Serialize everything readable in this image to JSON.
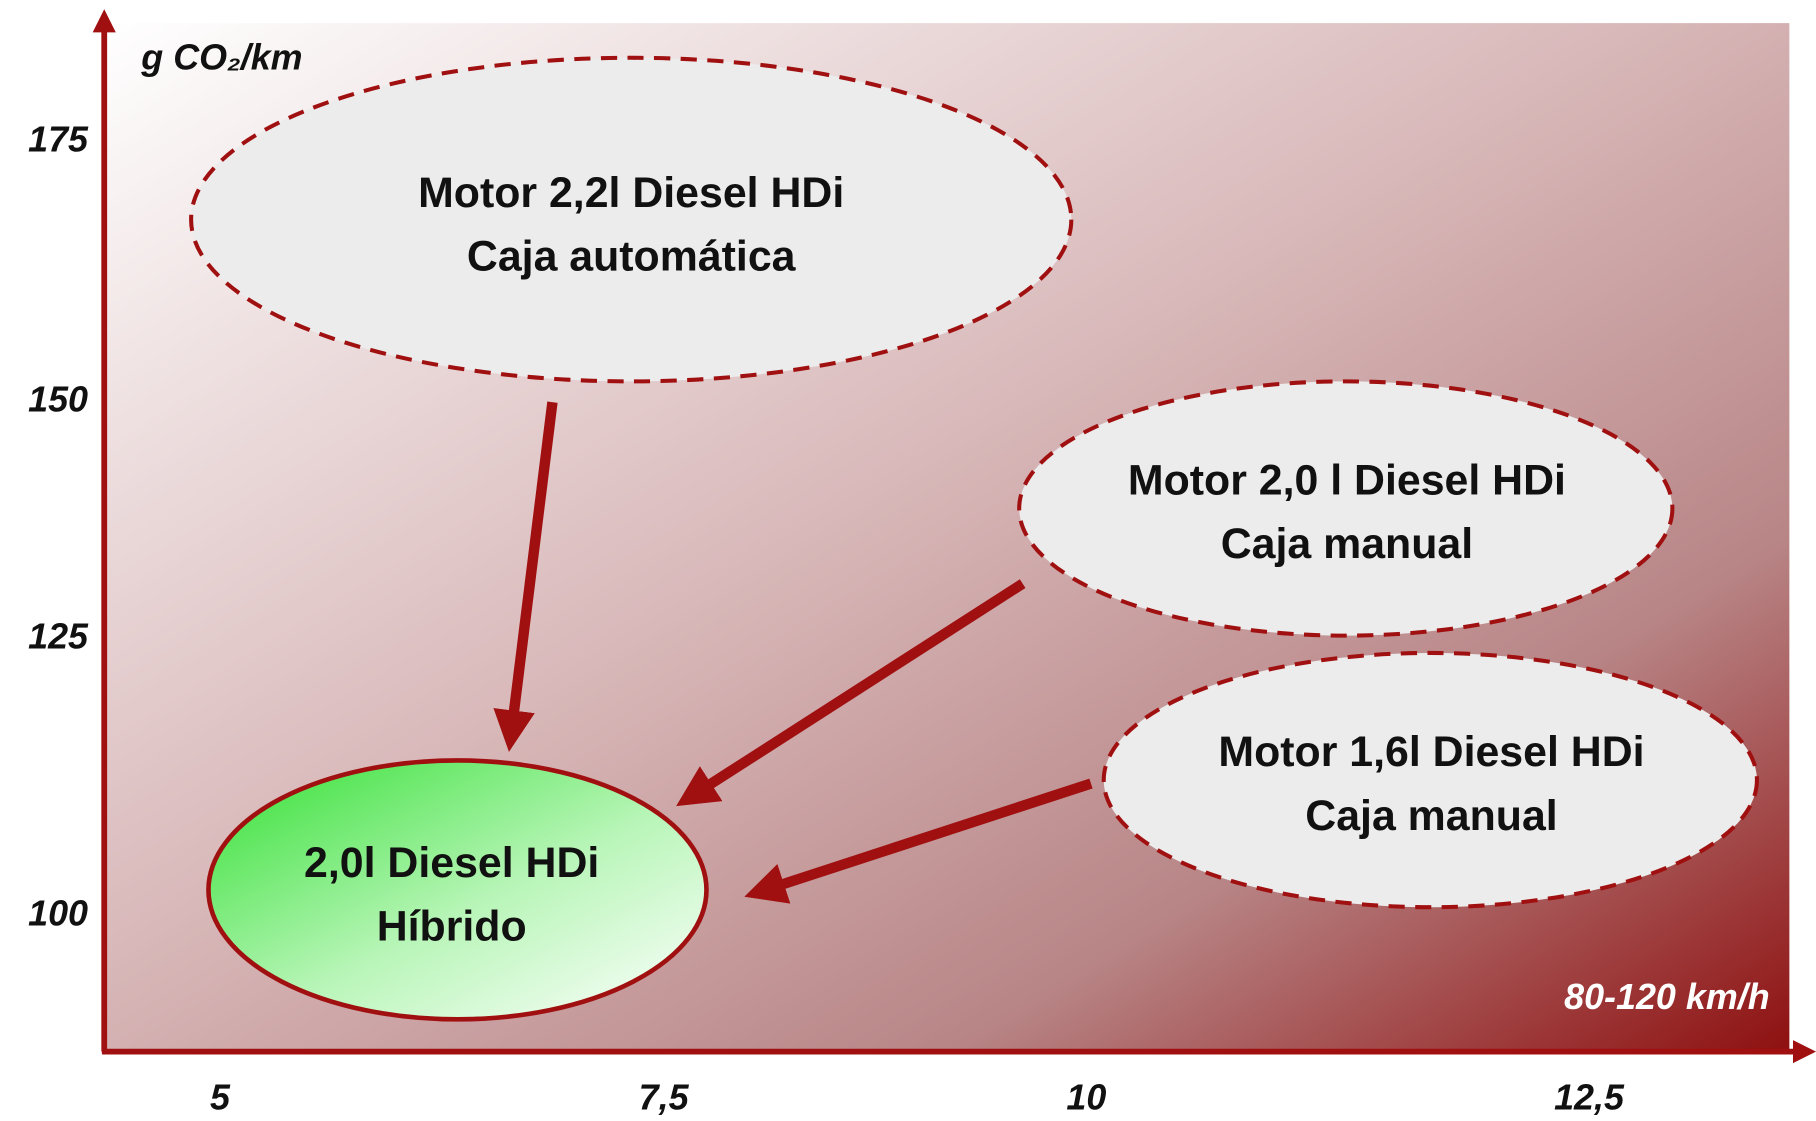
{
  "y_axis": {
    "label": "g CO₂/km",
    "ticks": [
      "175",
      "150",
      "125",
      "100"
    ]
  },
  "x_axis": {
    "label": "80-120 km/h",
    "ticks": [
      "5",
      "7,5",
      "10",
      "12,5"
    ]
  },
  "nodes": [
    {
      "lines": [
        "Motor 2,2l Diesel HDi",
        "Caja automática"
      ]
    },
    {
      "lines": [
        "Motor 2,0 l Diesel HDi",
        "Caja manual"
      ]
    },
    {
      "lines": [
        "Motor 1,6l Diesel HDi",
        "Caja manual"
      ]
    },
    {
      "lines": [
        "2,0l Diesel HDi",
        "Híbrido"
      ]
    }
  ]
}
